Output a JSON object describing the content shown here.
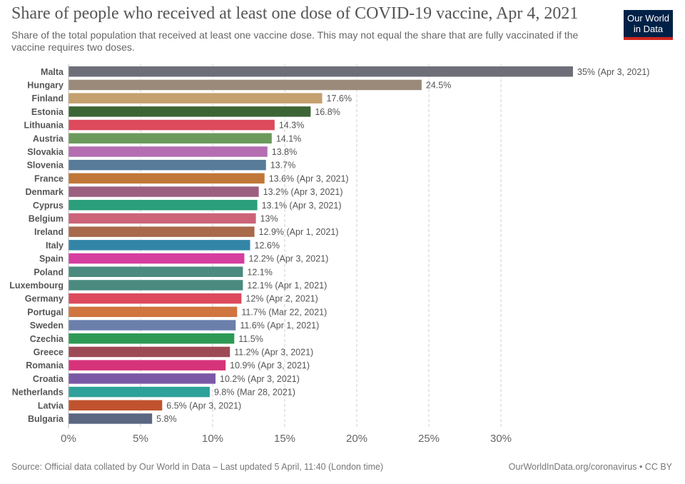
{
  "header": {
    "title": "Share of people who received at least one dose of COVID-19 vaccine, Apr 4, 2021",
    "subtitle": "Share of the total population that received at least one vaccine dose. This may not equal the share that are fully vaccinated if the vaccine requires two doses."
  },
  "logo": {
    "line1": "Our World",
    "line2": "in Data",
    "bg_color": "#002147",
    "accent_color": "#ce261e"
  },
  "footer": {
    "source": "Source: Official data collated by Our World in Data – Last updated 5 April, 11:40 (London time)",
    "credit": "OurWorldInData.org/coronavirus • CC BY"
  },
  "chart_data": {
    "type": "bar",
    "orientation": "horizontal",
    "title": "Share of people who received at least one dose of COVID-19 vaccine, Apr 4, 2021",
    "xlabel": "",
    "ylabel": "",
    "xlim": [
      0,
      35
    ],
    "x_ticks": [
      "0%",
      "5%",
      "10%",
      "15%",
      "20%",
      "25%",
      "30%"
    ],
    "x_tick_values": [
      0,
      5,
      10,
      15,
      20,
      25,
      30
    ],
    "grid": true,
    "bars": [
      {
        "label": "Malta",
        "value": 35,
        "value_label": "35% (Apr 3, 2021)",
        "color": "#6d6e78"
      },
      {
        "label": "Hungary",
        "value": 24.5,
        "value_label": "24.5%",
        "color": "#9b8a7a"
      },
      {
        "label": "Finland",
        "value": 17.6,
        "value_label": "17.6%",
        "color": "#c4a06f"
      },
      {
        "label": "Estonia",
        "value": 16.8,
        "value_label": "16.8%",
        "color": "#3c6535"
      },
      {
        "label": "Lithuania",
        "value": 14.3,
        "value_label": "14.3%",
        "color": "#dc4a5c"
      },
      {
        "label": "Austria",
        "value": 14.1,
        "value_label": "14.1%",
        "color": "#6b9a5c"
      },
      {
        "label": "Slovakia",
        "value": 13.8,
        "value_label": "13.8%",
        "color": "#b46db0"
      },
      {
        "label": "Slovenia",
        "value": 13.7,
        "value_label": "13.7%",
        "color": "#577b98"
      },
      {
        "label": "France",
        "value": 13.6,
        "value_label": "13.6% (Apr 3, 2021)",
        "color": "#c07737"
      },
      {
        "label": "Denmark",
        "value": 13.2,
        "value_label": "13.2% (Apr 3, 2021)",
        "color": "#9c5f80"
      },
      {
        "label": "Cyprus",
        "value": 13.1,
        "value_label": "13.1% (Apr 3, 2021)",
        "color": "#2a9e7a"
      },
      {
        "label": "Belgium",
        "value": 13,
        "value_label": "13%",
        "color": "#cc6379"
      },
      {
        "label": "Ireland",
        "value": 12.9,
        "value_label": "12.9% (Apr 1, 2021)",
        "color": "#a9694b"
      },
      {
        "label": "Italy",
        "value": 12.6,
        "value_label": "12.6%",
        "color": "#3385a8"
      },
      {
        "label": "Spain",
        "value": 12.2,
        "value_label": "12.2% (Apr 3, 2021)",
        "color": "#d63ea0"
      },
      {
        "label": "Poland",
        "value": 12.1,
        "value_label": "12.1%",
        "color": "#4b8a7f"
      },
      {
        "label": "Luxembourg",
        "value": 12.1,
        "value_label": "12.1% (Apr 1, 2021)",
        "color": "#4b8a7f"
      },
      {
        "label": "Germany",
        "value": 12,
        "value_label": "12% (Apr 2, 2021)",
        "color": "#dc4a5c"
      },
      {
        "label": "Portugal",
        "value": 11.7,
        "value_label": "11.7% (Mar 22, 2021)",
        "color": "#d07540"
      },
      {
        "label": "Sweden",
        "value": 11.6,
        "value_label": "11.6% (Apr 1, 2021)",
        "color": "#6b7fad"
      },
      {
        "label": "Czechia",
        "value": 11.5,
        "value_label": "11.5%",
        "color": "#2e9955"
      },
      {
        "label": "Greece",
        "value": 11.2,
        "value_label": "11.2% (Apr 3, 2021)",
        "color": "#9e4a55"
      },
      {
        "label": "Romania",
        "value": 10.9,
        "value_label": "10.9% (Apr 3, 2021)",
        "color": "#d6337a"
      },
      {
        "label": "Croatia",
        "value": 10.2,
        "value_label": "10.2% (Apr 3, 2021)",
        "color": "#7a58a6"
      },
      {
        "label": "Netherlands",
        "value": 9.8,
        "value_label": "9.8% (Mar 28, 2021)",
        "color": "#2ea19a"
      },
      {
        "label": "Latvia",
        "value": 6.5,
        "value_label": "6.5% (Apr 3, 2021)",
        "color": "#c0532e"
      },
      {
        "label": "Bulgaria",
        "value": 5.8,
        "value_label": "5.8%",
        "color": "#5b6680"
      }
    ]
  }
}
